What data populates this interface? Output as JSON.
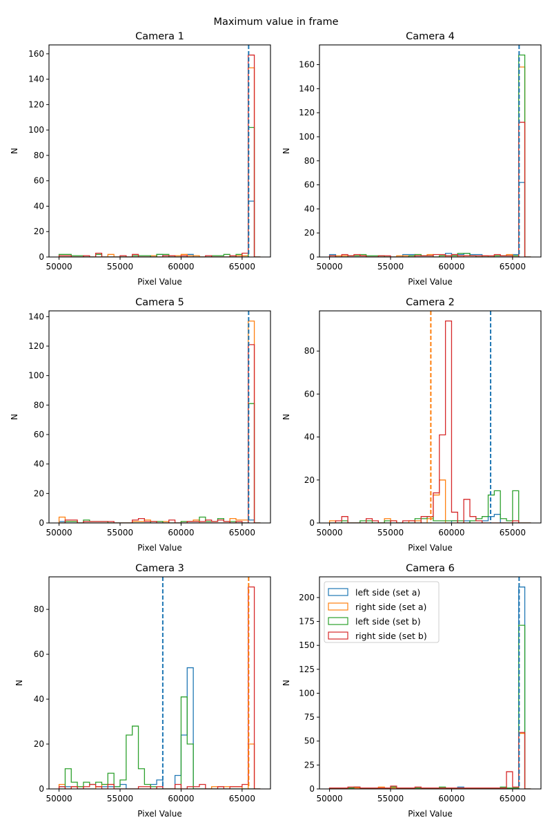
{
  "chart_data": {
    "type": "histogram",
    "title": "Maximum value in frame",
    "bin_start": 50000,
    "bin_width": 500,
    "n_bins": 33,
    "series_meta": [
      {
        "key": "left_a",
        "name": "left side (set a)",
        "color": "#1f77b4"
      },
      {
        "key": "right_a",
        "name": "right side (set a)",
        "color": "#ff7f0e"
      },
      {
        "key": "left_b",
        "name": "left side (set b)",
        "color": "#2ca02c"
      },
      {
        "key": "right_b",
        "name": "right side (set b)",
        "color": "#d62728"
      }
    ],
    "legend": {
      "panel": "Camera 6",
      "placement": "upper-left"
    },
    "panels": [
      {
        "title": "Camera 1",
        "xlabel": "Pixel Value",
        "ylabel": "N",
        "xlim": [
          49175,
          67325
        ],
        "ylim": [
          0,
          167
        ],
        "xticks": [
          50000,
          55000,
          60000,
          65000
        ],
        "yticks": [
          0,
          20,
          40,
          60,
          80,
          100,
          120,
          140,
          160
        ],
        "vlines": [
          {
            "x": 65535,
            "color": "#1f77b4"
          }
        ],
        "counts": {
          "left_a": [
            0,
            0,
            0,
            0,
            0,
            0,
            0,
            0,
            0,
            0,
            0,
            0,
            0,
            0,
            0,
            0,
            2,
            1,
            0,
            0,
            0,
            2,
            0,
            0,
            0,
            0,
            0,
            0,
            0,
            0,
            0,
            44,
            0
          ],
          "right_a": [
            0,
            0,
            0,
            0,
            0,
            0,
            0,
            0,
            2,
            0,
            0,
            0,
            0,
            0,
            0,
            1,
            0,
            0,
            1,
            1,
            2,
            1,
            1,
            0,
            0,
            0,
            0,
            0,
            0,
            1,
            1,
            149,
            0
          ],
          "left_b": [
            2,
            2,
            1,
            1,
            0,
            0,
            2,
            0,
            0,
            0,
            0,
            0,
            1,
            1,
            1,
            0,
            2,
            2,
            0,
            0,
            0,
            0,
            0,
            0,
            0,
            1,
            1,
            2,
            0,
            2,
            0,
            102,
            0
          ],
          "right_b": [
            1,
            1,
            0,
            0,
            1,
            0,
            3,
            0,
            0,
            0,
            1,
            0,
            2,
            0,
            0,
            0,
            0,
            1,
            1,
            0,
            1,
            0,
            0,
            0,
            1,
            0,
            0,
            0,
            1,
            0,
            3,
            159,
            0
          ]
        }
      },
      {
        "title": "Camera 4",
        "xlabel": "Pixel Value",
        "ylabel": "N",
        "xlim": [
          49175,
          67325
        ],
        "ylim": [
          0,
          176.4
        ],
        "xticks": [
          50000,
          55000,
          60000,
          65000
        ],
        "yticks": [
          0,
          20,
          40,
          60,
          80,
          100,
          120,
          140,
          160
        ],
        "vlines": [
          {
            "x": 65535,
            "color": "#1f77b4"
          }
        ],
        "counts": {
          "left_a": [
            2,
            0,
            0,
            0,
            0,
            0,
            0,
            0,
            0,
            0,
            0,
            0,
            2,
            2,
            0,
            0,
            0,
            0,
            1,
            3,
            2,
            2,
            3,
            2,
            2,
            0,
            0,
            0,
            0,
            0,
            2,
            62,
            0
          ],
          "right_a": [
            1,
            1,
            1,
            1,
            1,
            1,
            0,
            0,
            0,
            0,
            0,
            1,
            1,
            1,
            2,
            1,
            2,
            0,
            1,
            0,
            1,
            0,
            1,
            1,
            0,
            1,
            0,
            1,
            1,
            2,
            1,
            158,
            0
          ],
          "left_b": [
            1,
            0,
            0,
            1,
            1,
            2,
            1,
            1,
            1,
            0,
            0,
            0,
            0,
            1,
            2,
            1,
            1,
            0,
            1,
            1,
            1,
            3,
            3,
            1,
            0,
            0,
            0,
            1,
            1,
            1,
            1,
            168,
            0
          ],
          "right_b": [
            1,
            0,
            2,
            1,
            2,
            1,
            0,
            0,
            1,
            1,
            0,
            0,
            0,
            0,
            1,
            1,
            1,
            2,
            2,
            1,
            2,
            1,
            1,
            1,
            1,
            1,
            1,
            2,
            1,
            1,
            0,
            112,
            0
          ]
        }
      },
      {
        "title": "Camera 5",
        "xlabel": "Pixel Value",
        "ylabel": "N",
        "xlim": [
          49175,
          67325
        ],
        "ylim": [
          0,
          143.9
        ],
        "xticks": [
          50000,
          55000,
          60000,
          65000
        ],
        "yticks": [
          0,
          20,
          40,
          60,
          80,
          100,
          120,
          140
        ],
        "vlines": [
          {
            "x": 65535,
            "color": "#1f77b4"
          }
        ],
        "counts": {
          "left_a": [
            1,
            0,
            0,
            0,
            0,
            0,
            0,
            0,
            0,
            0,
            0,
            0,
            0,
            0,
            0,
            0,
            0,
            0,
            0,
            0,
            0,
            0,
            0,
            0,
            0,
            0,
            0,
            0,
            0,
            0,
            0,
            2,
            0
          ],
          "right_a": [
            4,
            1,
            1,
            0,
            0,
            0,
            0,
            0,
            0,
            0,
            0,
            0,
            1,
            1,
            2,
            1,
            1,
            1,
            0,
            0,
            1,
            1,
            2,
            0,
            0,
            0,
            0,
            0,
            3,
            2,
            2,
            137,
            0
          ],
          "left_b": [
            0,
            1,
            1,
            0,
            2,
            1,
            1,
            1,
            0,
            0,
            0,
            0,
            0,
            0,
            0,
            1,
            1,
            0,
            0,
            0,
            1,
            1,
            1,
            4,
            1,
            1,
            3,
            1,
            1,
            0,
            0,
            81,
            0
          ],
          "right_b": [
            0,
            2,
            2,
            0,
            1,
            1,
            1,
            1,
            1,
            0,
            0,
            0,
            2,
            3,
            1,
            1,
            0,
            0,
            2,
            0,
            0,
            1,
            1,
            1,
            2,
            1,
            2,
            1,
            0,
            1,
            0,
            121,
            0
          ]
        }
      },
      {
        "title": "Camera 2",
        "xlabel": "Pixel Value",
        "ylabel": "N",
        "xlim": [
          49175,
          67325
        ],
        "ylim": [
          0,
          98.7
        ],
        "xticks": [
          50000,
          55000,
          60000,
          65000
        ],
        "yticks": [
          0,
          20,
          40,
          60,
          80
        ],
        "vlines": [
          {
            "x": 58300,
            "color": "#ff7f0e"
          },
          {
            "x": 63200,
            "color": "#1f77b4"
          }
        ],
        "counts": {
          "left_a": [
            0,
            0,
            0,
            0,
            0,
            0,
            0,
            0,
            0,
            0,
            0,
            0,
            0,
            0,
            0,
            0,
            0,
            0,
            0,
            0,
            1,
            0,
            1,
            0,
            0,
            1,
            3,
            4,
            0,
            0,
            0,
            0,
            0
          ],
          "right_a": [
            1,
            0,
            0,
            0,
            0,
            0,
            0,
            0,
            0,
            2,
            1,
            0,
            0,
            1,
            1,
            0,
            2,
            13,
            20,
            0,
            0,
            0,
            0,
            0,
            0,
            0,
            0,
            0,
            0,
            0,
            0,
            0,
            0
          ],
          "left_b": [
            0,
            0,
            1,
            0,
            0,
            1,
            1,
            0,
            0,
            1,
            0,
            0,
            0,
            0,
            2,
            2,
            3,
            1,
            1,
            1,
            1,
            1,
            0,
            1,
            2,
            3,
            13,
            15,
            2,
            1,
            15,
            0,
            0
          ],
          "right_b": [
            0,
            1,
            3,
            0,
            0,
            0,
            2,
            1,
            0,
            0,
            1,
            0,
            1,
            1,
            0,
            3,
            3,
            14,
            41,
            94,
            5,
            0,
            11,
            3,
            1,
            0,
            0,
            0,
            0,
            0,
            1,
            0,
            0
          ]
        }
      },
      {
        "title": "Camera 3",
        "xlabel": "Pixel Value",
        "ylabel": "N",
        "xlim": [
          49175,
          67325
        ],
        "ylim": [
          0,
          94.5
        ],
        "xticks": [
          50000,
          55000,
          60000,
          65000
        ],
        "yticks": [
          0,
          20,
          40,
          60,
          80
        ],
        "vlines": [
          {
            "x": 58500,
            "color": "#1f77b4"
          },
          {
            "x": 65535,
            "color": "#ff7f0e"
          }
        ],
        "counts": {
          "left_a": [
            1,
            1,
            1,
            0,
            0,
            0,
            1,
            1,
            1,
            1,
            2,
            0,
            0,
            0,
            0,
            2,
            4,
            0,
            0,
            6,
            24,
            54,
            0,
            0,
            0,
            0,
            0,
            0,
            0,
            0,
            0,
            0,
            0
          ],
          "right_a": [
            2,
            0,
            1,
            1,
            0,
            0,
            1,
            2,
            2,
            0,
            0,
            0,
            0,
            0,
            0,
            0,
            0,
            0,
            0,
            0,
            0,
            0,
            0,
            0,
            0,
            1,
            1,
            1,
            1,
            1,
            0,
            20,
            0
          ],
          "left_b": [
            0,
            9,
            3,
            1,
            3,
            2,
            3,
            2,
            7,
            1,
            4,
            24,
            28,
            9,
            2,
            1,
            0,
            0,
            0,
            0,
            41,
            20,
            0,
            0,
            0,
            0,
            0,
            0,
            0,
            0,
            0,
            0,
            0
          ],
          "right_b": [
            1,
            0,
            1,
            0,
            1,
            2,
            1,
            0,
            2,
            0,
            0,
            0,
            0,
            1,
            1,
            0,
            1,
            0,
            0,
            2,
            0,
            1,
            1,
            2,
            0,
            0,
            1,
            0,
            1,
            1,
            2,
            90,
            0
          ]
        }
      },
      {
        "title": "Camera 6",
        "xlabel": "Pixel Value",
        "ylabel": "N",
        "xlim": [
          49175,
          67325
        ],
        "ylim": [
          0,
          221.6
        ],
        "xticks": [
          50000,
          55000,
          60000,
          65000
        ],
        "yticks": [
          0,
          25,
          50,
          75,
          100,
          125,
          150,
          175,
          200
        ],
        "vlines": [
          {
            "x": 65535,
            "color": "#1f77b4"
          }
        ],
        "counts": {
          "left_a": [
            1,
            1,
            1,
            1,
            1,
            1,
            1,
            1,
            1,
            1,
            1,
            1,
            1,
            1,
            1,
            1,
            1,
            1,
            1,
            1,
            1,
            2,
            1,
            1,
            1,
            1,
            1,
            1,
            1,
            1,
            1,
            211,
            0
          ],
          "right_a": [
            1,
            1,
            1,
            1,
            1,
            1,
            1,
            1,
            2,
            1,
            1,
            1,
            1,
            1,
            1,
            1,
            1,
            1,
            1,
            1,
            1,
            1,
            1,
            1,
            1,
            1,
            1,
            1,
            1,
            1,
            1,
            58,
            0
          ],
          "left_b": [
            1,
            1,
            1,
            1,
            2,
            1,
            1,
            1,
            1,
            1,
            2,
            1,
            1,
            1,
            1,
            1,
            1,
            1,
            2,
            1,
            1,
            1,
            1,
            1,
            1,
            1,
            1,
            1,
            2,
            1,
            1,
            171,
            0
          ],
          "right_b": [
            1,
            1,
            1,
            2,
            2,
            1,
            1,
            1,
            1,
            1,
            3,
            1,
            1,
            1,
            2,
            1,
            1,
            1,
            1,
            1,
            1,
            1,
            1,
            1,
            1,
            1,
            1,
            1,
            1,
            18,
            2,
            59,
            0
          ]
        }
      }
    ]
  }
}
